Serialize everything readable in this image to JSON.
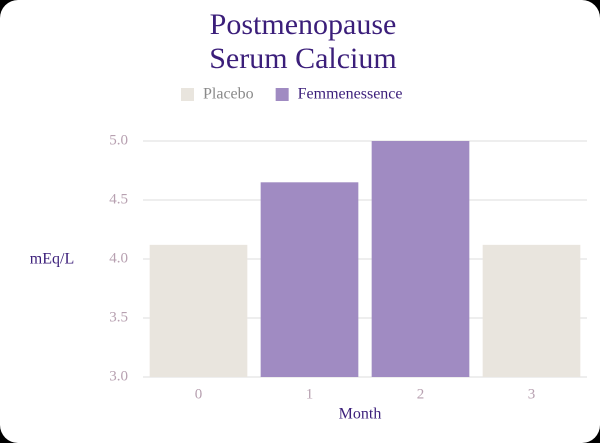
{
  "chart_data": {
    "type": "bar",
    "title": "Postmenopause Serum Calcium",
    "categories": [
      "0",
      "1",
      "2",
      "3"
    ],
    "series": [
      {
        "name": "Placebo",
        "color": "#e9e5de",
        "values": [
          4.12,
          null,
          null,
          4.12
        ]
      },
      {
        "name": "Femmenessence",
        "color": "#a08bc2",
        "values": [
          null,
          4.65,
          5.0,
          null
        ]
      }
    ],
    "x_label": "Month",
    "y_label": "mEq/L",
    "ylim": [
      3,
      5
    ],
    "yticks": [
      {
        "value": 3,
        "label": "3.0"
      },
      {
        "value": 3.5,
        "label": "3.5"
      },
      {
        "value": 4,
        "label": "4.0"
      },
      {
        "value": 4.5,
        "label": "4.5"
      },
      {
        "value": 5,
        "label": "5.0"
      }
    ],
    "grid": true
  }
}
